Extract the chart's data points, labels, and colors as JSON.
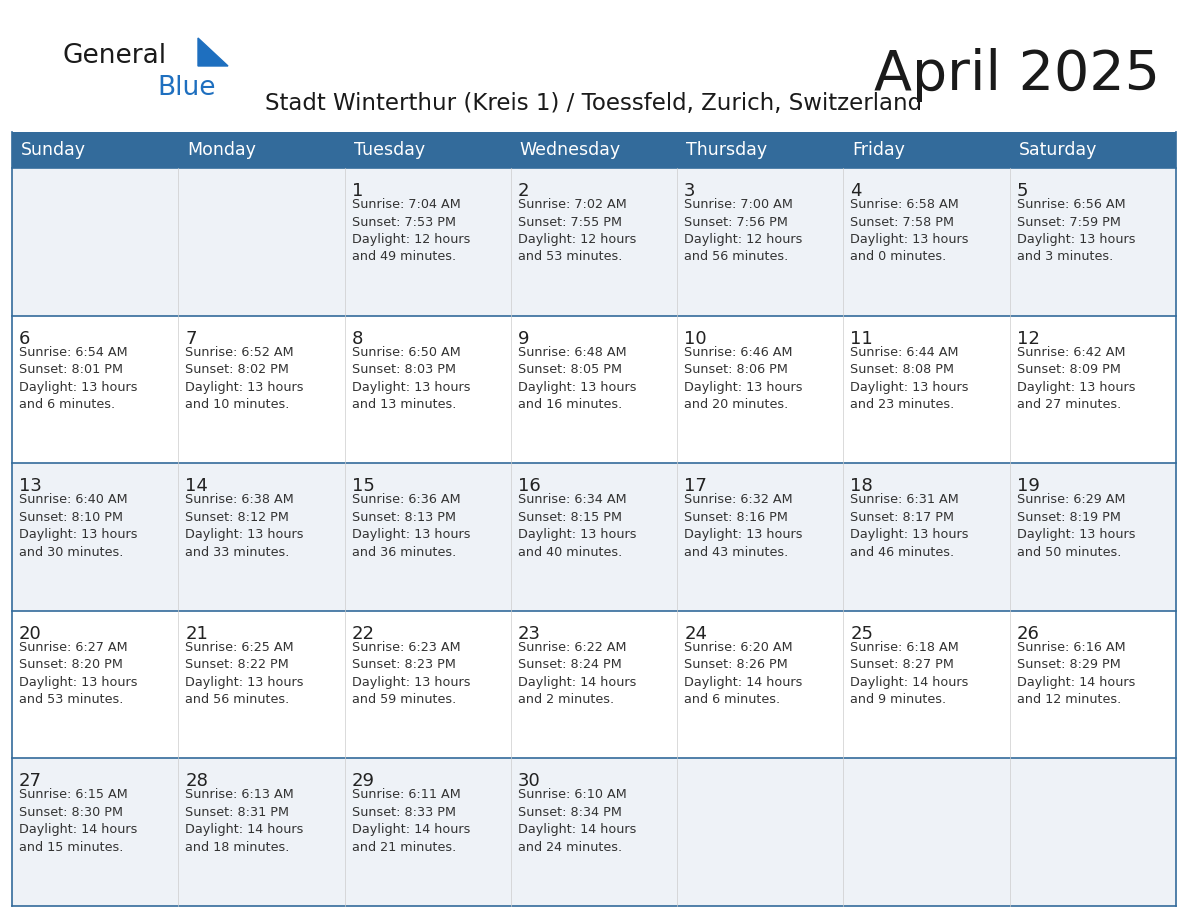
{
  "title": "April 2025",
  "subtitle": "Stadt Winterthur (Kreis 1) / Toessfeld, Zurich, Switzerland",
  "days_of_week": [
    "Sunday",
    "Monday",
    "Tuesday",
    "Wednesday",
    "Thursday",
    "Friday",
    "Saturday"
  ],
  "header_bg": "#336b9b",
  "header_text": "#ffffff",
  "row_bg_odd": "#eef2f7",
  "row_bg_even": "#ffffff",
  "day_number_color": "#222222",
  "text_color": "#333333",
  "title_color": "#1a1a1a",
  "subtitle_color": "#1a1a1a",
  "logo_general_color": "#1a1a1a",
  "logo_blue_color": "#1e6fbf",
  "border_color": "#336b9b",
  "weeks": [
    [
      {
        "day": null,
        "info": null
      },
      {
        "day": null,
        "info": null
      },
      {
        "day": 1,
        "info": "Sunrise: 7:04 AM\nSunset: 7:53 PM\nDaylight: 12 hours\nand 49 minutes."
      },
      {
        "day": 2,
        "info": "Sunrise: 7:02 AM\nSunset: 7:55 PM\nDaylight: 12 hours\nand 53 minutes."
      },
      {
        "day": 3,
        "info": "Sunrise: 7:00 AM\nSunset: 7:56 PM\nDaylight: 12 hours\nand 56 minutes."
      },
      {
        "day": 4,
        "info": "Sunrise: 6:58 AM\nSunset: 7:58 PM\nDaylight: 13 hours\nand 0 minutes."
      },
      {
        "day": 5,
        "info": "Sunrise: 6:56 AM\nSunset: 7:59 PM\nDaylight: 13 hours\nand 3 minutes."
      }
    ],
    [
      {
        "day": 6,
        "info": "Sunrise: 6:54 AM\nSunset: 8:01 PM\nDaylight: 13 hours\nand 6 minutes."
      },
      {
        "day": 7,
        "info": "Sunrise: 6:52 AM\nSunset: 8:02 PM\nDaylight: 13 hours\nand 10 minutes."
      },
      {
        "day": 8,
        "info": "Sunrise: 6:50 AM\nSunset: 8:03 PM\nDaylight: 13 hours\nand 13 minutes."
      },
      {
        "day": 9,
        "info": "Sunrise: 6:48 AM\nSunset: 8:05 PM\nDaylight: 13 hours\nand 16 minutes."
      },
      {
        "day": 10,
        "info": "Sunrise: 6:46 AM\nSunset: 8:06 PM\nDaylight: 13 hours\nand 20 minutes."
      },
      {
        "day": 11,
        "info": "Sunrise: 6:44 AM\nSunset: 8:08 PM\nDaylight: 13 hours\nand 23 minutes."
      },
      {
        "day": 12,
        "info": "Sunrise: 6:42 AM\nSunset: 8:09 PM\nDaylight: 13 hours\nand 27 minutes."
      }
    ],
    [
      {
        "day": 13,
        "info": "Sunrise: 6:40 AM\nSunset: 8:10 PM\nDaylight: 13 hours\nand 30 minutes."
      },
      {
        "day": 14,
        "info": "Sunrise: 6:38 AM\nSunset: 8:12 PM\nDaylight: 13 hours\nand 33 minutes."
      },
      {
        "day": 15,
        "info": "Sunrise: 6:36 AM\nSunset: 8:13 PM\nDaylight: 13 hours\nand 36 minutes."
      },
      {
        "day": 16,
        "info": "Sunrise: 6:34 AM\nSunset: 8:15 PM\nDaylight: 13 hours\nand 40 minutes."
      },
      {
        "day": 17,
        "info": "Sunrise: 6:32 AM\nSunset: 8:16 PM\nDaylight: 13 hours\nand 43 minutes."
      },
      {
        "day": 18,
        "info": "Sunrise: 6:31 AM\nSunset: 8:17 PM\nDaylight: 13 hours\nand 46 minutes."
      },
      {
        "day": 19,
        "info": "Sunrise: 6:29 AM\nSunset: 8:19 PM\nDaylight: 13 hours\nand 50 minutes."
      }
    ],
    [
      {
        "day": 20,
        "info": "Sunrise: 6:27 AM\nSunset: 8:20 PM\nDaylight: 13 hours\nand 53 minutes."
      },
      {
        "day": 21,
        "info": "Sunrise: 6:25 AM\nSunset: 8:22 PM\nDaylight: 13 hours\nand 56 minutes."
      },
      {
        "day": 22,
        "info": "Sunrise: 6:23 AM\nSunset: 8:23 PM\nDaylight: 13 hours\nand 59 minutes."
      },
      {
        "day": 23,
        "info": "Sunrise: 6:22 AM\nSunset: 8:24 PM\nDaylight: 14 hours\nand 2 minutes."
      },
      {
        "day": 24,
        "info": "Sunrise: 6:20 AM\nSunset: 8:26 PM\nDaylight: 14 hours\nand 6 minutes."
      },
      {
        "day": 25,
        "info": "Sunrise: 6:18 AM\nSunset: 8:27 PM\nDaylight: 14 hours\nand 9 minutes."
      },
      {
        "day": 26,
        "info": "Sunrise: 6:16 AM\nSunset: 8:29 PM\nDaylight: 14 hours\nand 12 minutes."
      }
    ],
    [
      {
        "day": 27,
        "info": "Sunrise: 6:15 AM\nSunset: 8:30 PM\nDaylight: 14 hours\nand 15 minutes."
      },
      {
        "day": 28,
        "info": "Sunrise: 6:13 AM\nSunset: 8:31 PM\nDaylight: 14 hours\nand 18 minutes."
      },
      {
        "day": 29,
        "info": "Sunrise: 6:11 AM\nSunset: 8:33 PM\nDaylight: 14 hours\nand 21 minutes."
      },
      {
        "day": 30,
        "info": "Sunrise: 6:10 AM\nSunset: 8:34 PM\nDaylight: 14 hours\nand 24 minutes."
      },
      {
        "day": null,
        "info": null
      },
      {
        "day": null,
        "info": null
      },
      {
        "day": null,
        "info": null
      }
    ]
  ]
}
